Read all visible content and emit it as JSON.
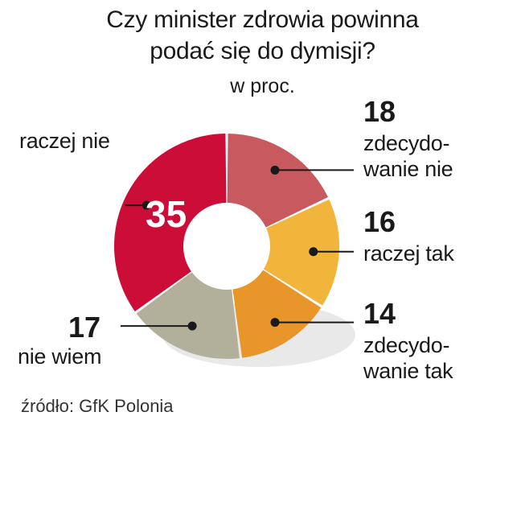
{
  "title_line1": "Czy minister zdrowia powinna",
  "title_line2": "podać się do dymisji?",
  "subtitle": "w proc.",
  "source": "źródło: GfK Polonia",
  "chart_data": {
    "type": "pie",
    "title": "Czy minister zdrowia powinna podać się do dymisji?",
    "subtitle": "w proc.",
    "unit": "w proc.",
    "slices": [
      {
        "label": "zdecydowanie nie",
        "label_lines": [
          "zdecydo-",
          "wanie nie"
        ],
        "value": 18,
        "color": "#c85a5f"
      },
      {
        "label": "raczej tak",
        "label_lines": [
          "raczej tak"
        ],
        "value": 16,
        "color": "#f1b53c"
      },
      {
        "label": "zdecydowanie tak",
        "label_lines": [
          "zdecydo-",
          "wanie tak"
        ],
        "value": 14,
        "color": "#e8962a"
      },
      {
        "label": "nie wiem",
        "label_lines": [
          "nie wiem"
        ],
        "value": 17,
        "color": "#b2b09b"
      },
      {
        "label": "raczej nie",
        "label_lines": [
          "raczej nie"
        ],
        "value": 35,
        "color": "#cc0d37"
      }
    ]
  }
}
